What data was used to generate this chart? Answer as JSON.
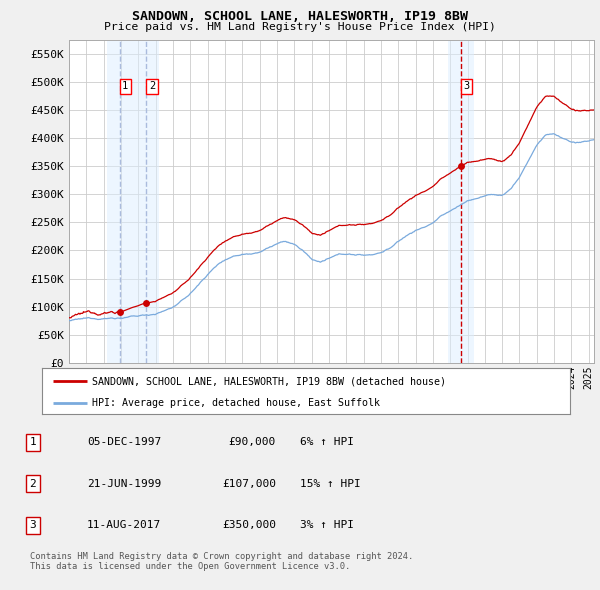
{
  "title": "SANDOWN, SCHOOL LANE, HALESWORTH, IP19 8BW",
  "subtitle": "Price paid vs. HM Land Registry's House Price Index (HPI)",
  "ylabel_ticks": [
    "£0",
    "£50K",
    "£100K",
    "£150K",
    "£200K",
    "£250K",
    "£300K",
    "£350K",
    "£400K",
    "£450K",
    "£500K",
    "£550K"
  ],
  "ytick_values": [
    0,
    50000,
    100000,
    150000,
    200000,
    250000,
    300000,
    350000,
    400000,
    450000,
    500000,
    550000
  ],
  "ylim": [
    0,
    575000
  ],
  "xlim_start": 1995.0,
  "xlim_end": 2025.3,
  "background_color": "#f0f0f0",
  "plot_bg_color": "#ffffff",
  "grid_color": "#cccccc",
  "sale_color": "#cc0000",
  "hpi_color": "#7aaadd",
  "vline_color_12": "#aabbdd",
  "vline_color_3": "#cc0000",
  "shade_color": "#ddeeff",
  "transactions": [
    {
      "num": 1,
      "date_label": "05-DEC-1997",
      "price": 90000,
      "pct": "6%",
      "direction": "↑",
      "x": 1997.92
    },
    {
      "num": 2,
      "date_label": "21-JUN-1999",
      "price": 107000,
      "pct": "15%",
      "direction": "↑",
      "x": 1999.47
    },
    {
      "num": 3,
      "date_label": "11-AUG-2017",
      "price": 350000,
      "pct": "3%",
      "direction": "↑",
      "x": 2017.61
    }
  ],
  "legend_sale_label": "SANDOWN, SCHOOL LANE, HALESWORTH, IP19 8BW (detached house)",
  "legend_hpi_label": "HPI: Average price, detached house, East Suffolk",
  "footnote": "Contains HM Land Registry data © Crown copyright and database right 2024.\nThis data is licensed under the Open Government Licence v3.0."
}
